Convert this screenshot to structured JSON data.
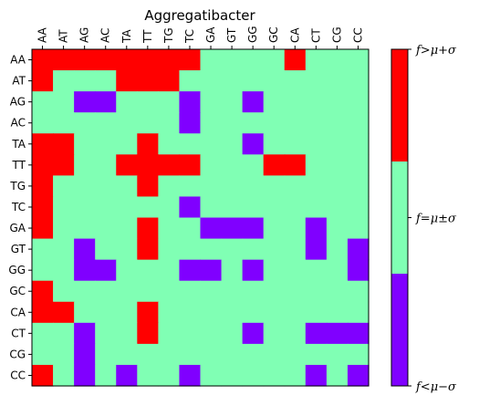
{
  "chart_data": {
    "type": "heatmap",
    "title": "Aggregatibacter",
    "x_labels": [
      "AA",
      "AT",
      "AG",
      "AC",
      "TA",
      "TT",
      "TG",
      "TC",
      "GA",
      "GT",
      "GG",
      "GC",
      "CA",
      "CT",
      "CG",
      "CC"
    ],
    "y_labels": [
      "AA",
      "AT",
      "AG",
      "AC",
      "TA",
      "TT",
      "TG",
      "TC",
      "GA",
      "GT",
      "GG",
      "GC",
      "CA",
      "CT",
      "CG",
      "CC"
    ],
    "levels": [
      {
        "value": -1,
        "name": "f<μ−σ",
        "color": "#8000ff"
      },
      {
        "value": 0,
        "name": "f=μ±σ",
        "color": "#80ffb4"
      },
      {
        "value": 1,
        "name": "f>μ+σ",
        "color": "#ff0000"
      }
    ],
    "matrix": [
      [
        1,
        1,
        1,
        1,
        1,
        1,
        1,
        1,
        0,
        0,
        0,
        0,
        1,
        0,
        0,
        0
      ],
      [
        1,
        0,
        0,
        0,
        1,
        1,
        1,
        0,
        0,
        0,
        0,
        0,
        0,
        0,
        0,
        0
      ],
      [
        0,
        0,
        -1,
        -1,
        0,
        0,
        0,
        -1,
        0,
        0,
        -1,
        0,
        0,
        0,
        0,
        0
      ],
      [
        0,
        0,
        0,
        0,
        0,
        0,
        0,
        -1,
        0,
        0,
        0,
        0,
        0,
        0,
        0,
        0
      ],
      [
        1,
        1,
        0,
        0,
        0,
        1,
        0,
        0,
        0,
        0,
        -1,
        0,
        0,
        0,
        0,
        0
      ],
      [
        1,
        1,
        0,
        0,
        1,
        1,
        1,
        1,
        0,
        0,
        0,
        1,
        1,
        0,
        0,
        0
      ],
      [
        1,
        0,
        0,
        0,
        0,
        1,
        0,
        0,
        0,
        0,
        0,
        0,
        0,
        0,
        0,
        0
      ],
      [
        1,
        0,
        0,
        0,
        0,
        0,
        0,
        -1,
        0,
        0,
        0,
        0,
        0,
        0,
        0,
        0
      ],
      [
        1,
        0,
        0,
        0,
        0,
        1,
        0,
        0,
        -1,
        -1,
        -1,
        0,
        0,
        -1,
        0,
        0
      ],
      [
        0,
        0,
        -1,
        0,
        0,
        1,
        0,
        0,
        0,
        0,
        0,
        0,
        0,
        -1,
        0,
        -1
      ],
      [
        0,
        0,
        -1,
        -1,
        0,
        0,
        0,
        -1,
        -1,
        0,
        -1,
        0,
        0,
        0,
        0,
        -1
      ],
      [
        1,
        0,
        0,
        0,
        0,
        0,
        0,
        0,
        0,
        0,
        0,
        0,
        0,
        0,
        0,
        0
      ],
      [
        1,
        1,
        0,
        0,
        0,
        1,
        0,
        0,
        0,
        0,
        0,
        0,
        0,
        0,
        0,
        0
      ],
      [
        0,
        0,
        -1,
        0,
        0,
        1,
        0,
        0,
        0,
        0,
        -1,
        0,
        0,
        -1,
        -1,
        -1
      ],
      [
        0,
        0,
        -1,
        0,
        0,
        0,
        0,
        0,
        0,
        0,
        0,
        0,
        0,
        0,
        0,
        0
      ],
      [
        1,
        0,
        -1,
        0,
        -1,
        0,
        0,
        -1,
        0,
        0,
        0,
        0,
        0,
        -1,
        0,
        -1
      ]
    ],
    "colorbar": {
      "tick_labels": [
        "f<μ−σ",
        "f=μ±σ",
        "f>μ+σ"
      ]
    }
  }
}
